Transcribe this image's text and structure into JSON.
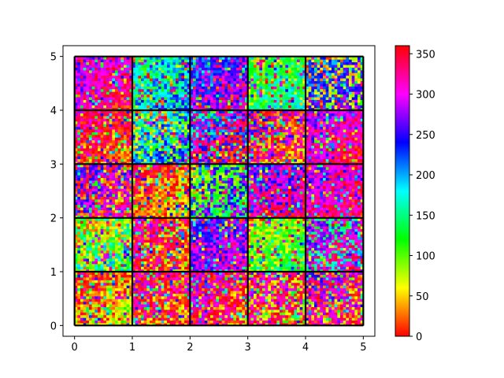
{
  "chart_data": {
    "type": "heatmap",
    "title": "",
    "xlabel": "",
    "ylabel": "",
    "xlim": [
      -0.2,
      5.2
    ],
    "ylim": [
      -0.2,
      5.2
    ],
    "x_ticks": [
      "0",
      "1",
      "2",
      "3",
      "4",
      "5"
    ],
    "y_ticks": [
      "0",
      "1",
      "2",
      "3",
      "4",
      "5"
    ],
    "grid_lines_at": [
      0,
      1,
      2,
      3,
      4,
      5
    ],
    "colormap": "hsv",
    "colorbar": {
      "range": [
        0,
        360
      ],
      "ticks": [
        "0",
        "50",
        "100",
        "150",
        "200",
        "250",
        "300",
        "350"
      ]
    },
    "blocks": {
      "description_order": "rows from bottom (y 0-1) to top (y 4-5), columns from left (x 0-1) to right (x 4-5)",
      "dominant_hue_deg": [
        [
          20,
          330,
          320,
          330,
          300
        ],
        [
          70,
          340,
          290,
          120,
          300
        ],
        [
          280,
          10,
          110,
          320,
          300
        ],
        [
          345,
          200,
          330,
          20,
          300
        ],
        [
          300,
          200,
          250,
          150,
          240
        ]
      ],
      "secondary_hue_deg": [
        [
          60,
          30,
          20,
          60,
          30
        ],
        [
          160,
          30,
          250,
          80,
          160
        ],
        [
          20,
          50,
          250,
          250,
          330
        ],
        [
          20,
          80,
          220,
          300,
          330
        ],
        [
          330,
          140,
          300,
          110,
          60
        ]
      ]
    }
  }
}
